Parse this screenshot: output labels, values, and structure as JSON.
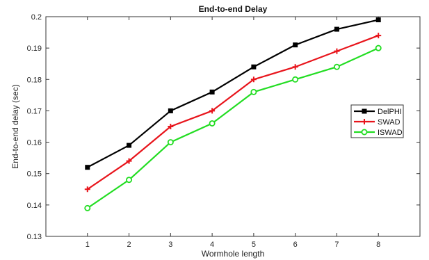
{
  "chart_data": {
    "type": "line",
    "title": "End-to-end Delay",
    "xlabel": "Wormhole length",
    "ylabel": "End-to-end delay (sec)",
    "x": [
      1,
      2,
      3,
      4,
      5,
      6,
      7,
      8
    ],
    "xlim": [
      0,
      9
    ],
    "ylim": [
      0.13,
      0.2
    ],
    "x_ticks": [
      "1",
      "2",
      "3",
      "4",
      "5",
      "6",
      "7",
      "8"
    ],
    "y_ticks": [
      "0.13",
      "0.14",
      "0.15",
      "0.16",
      "0.17",
      "0.18",
      "0.19",
      "0.2"
    ],
    "grid": false,
    "legend_position": "right",
    "series": [
      {
        "name": "DelPHI",
        "color": "#000000",
        "marker": "square",
        "values": [
          0.152,
          0.159,
          0.17,
          0.176,
          0.184,
          0.191,
          0.196,
          0.199
        ]
      },
      {
        "name": "SWAD",
        "color": "#e8141b",
        "marker": "plus",
        "values": [
          0.145,
          0.154,
          0.165,
          0.17,
          0.18,
          0.184,
          0.189,
          0.194
        ]
      },
      {
        "name": "ISWAD",
        "color": "#22dd22",
        "marker": "circle",
        "values": [
          0.139,
          0.148,
          0.16,
          0.166,
          0.176,
          0.18,
          0.184,
          0.19
        ]
      }
    ]
  }
}
